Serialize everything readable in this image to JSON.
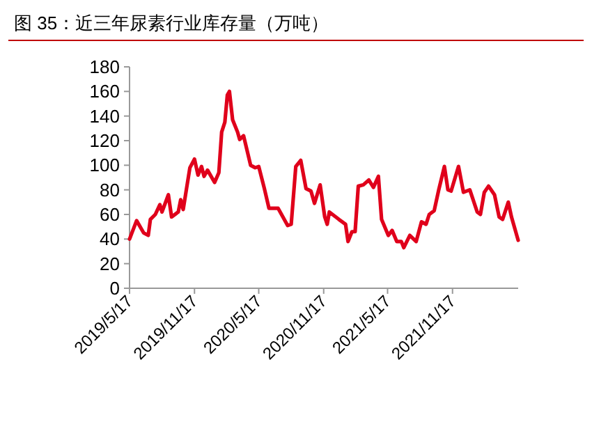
{
  "chart_data": {
    "type": "line",
    "title": "图 35：近三年尿素行业库存量（万吨）",
    "x": [
      "2019-05-17",
      "2019-06-06",
      "2019-06-26",
      "2019-07-09",
      "2019-07-15",
      "2019-07-29",
      "2019-08-11",
      "2019-08-17",
      "2019-09-04",
      "2019-09-13",
      "2019-10-02",
      "2019-10-09",
      "2019-10-16",
      "2019-10-26",
      "2019-11-04",
      "2019-11-17",
      "2019-11-27",
      "2019-12-07",
      "2019-12-14",
      "2019-12-24",
      "2020-01-13",
      "2020-01-25",
      "2020-02-02",
      "2020-02-11",
      "2020-02-18",
      "2020-02-24",
      "2020-03-04",
      "2020-03-18",
      "2020-03-24",
      "2020-04-04",
      "2020-04-24",
      "2020-05-07",
      "2020-05-17",
      "2020-06-02",
      "2020-06-15",
      "2020-07-11",
      "2020-08-07",
      "2020-08-17",
      "2020-08-30",
      "2020-09-13",
      "2020-09-28",
      "2020-10-12",
      "2020-10-22",
      "2020-11-07",
      "2020-11-20",
      "2020-11-27",
      "2020-12-03",
      "2020-12-30",
      "2021-01-18",
      "2021-01-25",
      "2021-02-05",
      "2021-02-14",
      "2021-02-23",
      "2021-03-09",
      "2021-03-25",
      "2021-04-07",
      "2021-04-21",
      "2021-04-30",
      "2021-05-19",
      "2021-05-30",
      "2021-06-12",
      "2021-06-25",
      "2021-07-02",
      "2021-07-19",
      "2021-08-06",
      "2021-08-21",
      "2021-09-03",
      "2021-09-12",
      "2021-09-26",
      "2021-10-09",
      "2021-10-25",
      "2021-11-04",
      "2021-11-13",
      "2021-12-04",
      "2021-12-18",
      "2022-01-05",
      "2022-01-26",
      "2022-02-04",
      "2022-02-15",
      "2022-02-27",
      "2022-03-16",
      "2022-03-29",
      "2022-04-08",
      "2022-04-24",
      "2022-05-03",
      "2022-05-22"
    ],
    "series": [
      {
        "color": "#e0001b",
        "values": [
          40,
          55,
          45,
          43,
          56,
          60,
          68,
          62,
          76,
          58,
          62,
          72,
          64,
          82,
          98,
          105,
          92,
          99,
          91,
          96,
          86,
          94,
          127,
          135,
          157,
          160,
          137,
          127,
          121,
          124,
          100,
          98,
          99,
          81,
          65,
          65,
          51,
          52,
          99,
          104,
          81,
          79,
          69,
          84,
          58,
          52,
          62,
          56,
          52,
          38,
          46,
          46,
          83,
          84,
          88,
          82,
          91,
          56,
          43,
          47,
          38,
          38,
          33,
          43,
          38,
          54,
          52,
          60,
          63,
          80,
          99,
          80,
          79,
          99,
          78,
          80,
          62,
          60,
          78,
          83,
          76,
          58,
          56,
          70,
          58,
          39
        ]
      }
    ],
    "xlim": [
      "2019-05-17",
      "2022-05-22"
    ],
    "xticks": [
      {
        "value": "2019-05-17",
        "label": "2019/5/17"
      },
      {
        "value": "2019-11-17",
        "label": "2019/11/17"
      },
      {
        "value": "2020-05-17",
        "label": "2020/5/17"
      },
      {
        "value": "2020-11-17",
        "label": "2020/11/17"
      },
      {
        "value": "2021-05-17",
        "label": "2021/5/17"
      },
      {
        "value": "2021-11-17",
        "label": "2021/11/17"
      }
    ],
    "ylim": [
      0,
      180
    ],
    "yticks": [
      0,
      20,
      40,
      60,
      80,
      100,
      120,
      140,
      160,
      180
    ],
    "grid": false,
    "marker": "none",
    "line_style": "solid"
  }
}
